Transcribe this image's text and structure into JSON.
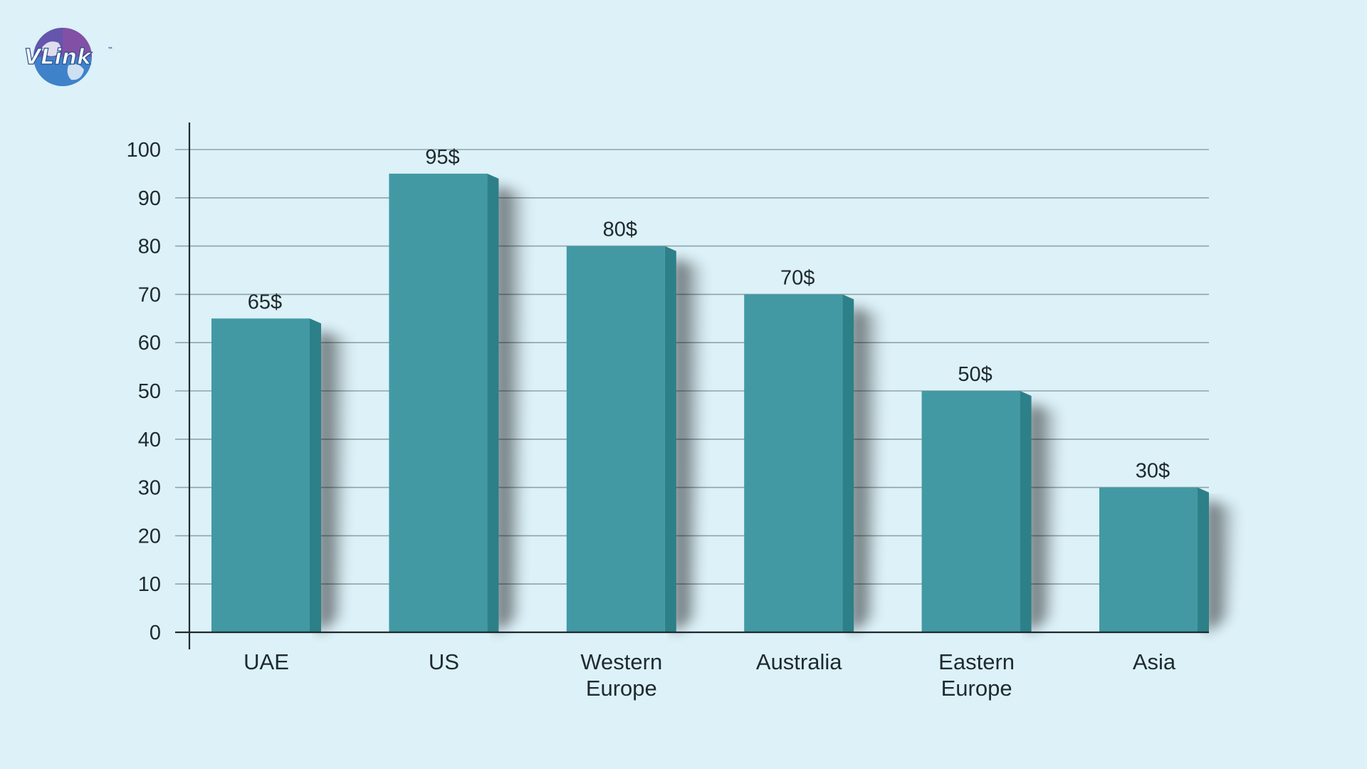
{
  "logo": {
    "text": "VLink",
    "tm": "™"
  },
  "colors": {
    "background": "#dcf1f8",
    "bar_front": "#4299a4",
    "bar_side": "#2d8088",
    "gridline": "#8ea4aa",
    "axis": "#1f2a2e",
    "text": "#1f2a2e"
  },
  "chart_data": {
    "type": "bar",
    "categories": [
      "UAE",
      "US",
      "Western Europe",
      "Australia",
      "Eastern Europe",
      "Asia"
    ],
    "category_lines": [
      [
        "UAE"
      ],
      [
        "US"
      ],
      [
        "Western",
        "Europe"
      ],
      [
        "Australia"
      ],
      [
        "Eastern",
        "Europe"
      ],
      [
        "Asia"
      ]
    ],
    "values": [
      65,
      95,
      80,
      70,
      50,
      30
    ],
    "data_labels": [
      "65$",
      "95$",
      "80$",
      "70$",
      "50$",
      "30$"
    ],
    "ylim": [
      0,
      100
    ],
    "yticks": [
      0,
      10,
      20,
      30,
      40,
      50,
      60,
      70,
      80,
      90,
      100
    ],
    "grid": true,
    "title": "",
    "xlabel": "",
    "ylabel": "",
    "legend": "none"
  }
}
